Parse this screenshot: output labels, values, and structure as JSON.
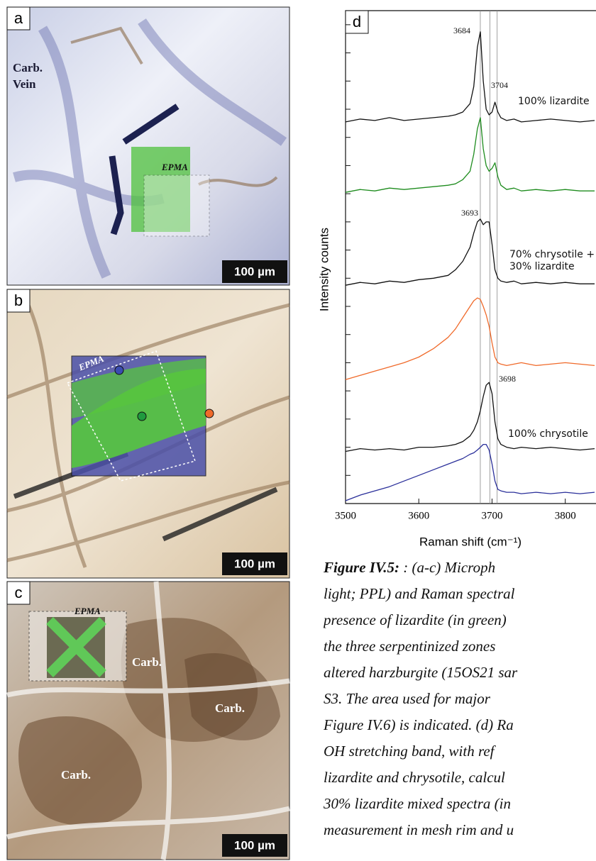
{
  "panels": [
    {
      "label": "a",
      "annotations": [
        "Carb.",
        "Vein"
      ],
      "epma": "EPMA",
      "scale_bar": "100 µm"
    },
    {
      "label": "b",
      "epma": "EPMA",
      "scale_bar": "100 µm"
    },
    {
      "label": "c",
      "epma": "EPMA",
      "annotations": [
        "Carb.",
        "Carb.",
        "Carb."
      ],
      "scale_bar": "100 µm"
    }
  ],
  "chart_data": {
    "type": "line",
    "panel_label": "d",
    "x_label": "Raman shift (cm⁻¹)",
    "y_label": "Intensity counts",
    "x": [
      3500,
      3520,
      3540,
      3560,
      3580,
      3600,
      3620,
      3640,
      3650,
      3660,
      3670,
      3675,
      3680,
      3684,
      3688,
      3692,
      3696,
      3700,
      3704,
      3708,
      3712,
      3720,
      3730,
      3740,
      3760,
      3780,
      3800,
      3820,
      3840
    ],
    "xlim": [
      3500,
      3840
    ],
    "xticks": [
      3500,
      3600,
      3700,
      3800
    ],
    "ylim": [
      0,
      17.5
    ],
    "yticks": [
      1,
      2,
      3,
      4,
      5,
      6,
      7,
      8,
      9,
      10,
      11,
      12,
      13,
      14,
      15,
      16,
      17
    ],
    "reference_lines": [
      3684,
      3697,
      3707
    ],
    "peak_labels": [
      "3684",
      "3704",
      "3693",
      "3698"
    ],
    "series": [
      {
        "name": "100% lizardite",
        "color": "#111111",
        "values": [
          13.55,
          13.65,
          13.6,
          13.7,
          13.6,
          13.65,
          13.7,
          13.75,
          13.8,
          13.9,
          14.2,
          14.8,
          16.2,
          16.75,
          15.0,
          14.0,
          13.8,
          13.9,
          14.25,
          13.9,
          13.7,
          13.6,
          13.65,
          13.55,
          13.6,
          13.65,
          13.6,
          13.55,
          13.6
        ]
      },
      {
        "color": "#1e8c1e",
        "values": [
          11.05,
          11.15,
          11.1,
          11.2,
          11.15,
          11.2,
          11.25,
          11.3,
          11.35,
          11.5,
          11.8,
          12.4,
          13.3,
          13.7,
          12.6,
          12.0,
          11.8,
          11.9,
          12.1,
          11.6,
          11.3,
          11.15,
          11.2,
          11.1,
          11.15,
          11.1,
          11.15,
          11.1,
          11.1
        ]
      },
      {
        "name": "70% chrysotile + 30% lizardite",
        "color": "#111111",
        "values": [
          7.75,
          7.85,
          7.8,
          7.9,
          7.85,
          7.95,
          8.0,
          8.1,
          8.3,
          8.6,
          9.1,
          9.6,
          10.0,
          10.1,
          9.9,
          10.0,
          10.0,
          9.2,
          8.3,
          8.0,
          7.9,
          7.85,
          7.9,
          7.8,
          7.85,
          7.8,
          7.85,
          7.8,
          7.8
        ]
      },
      {
        "color": "#f06a2a",
        "values": [
          4.4,
          4.55,
          4.7,
          4.85,
          5.0,
          5.2,
          5.5,
          5.9,
          6.2,
          6.6,
          7.0,
          7.2,
          7.3,
          7.25,
          7.0,
          6.7,
          6.3,
          5.7,
          5.2,
          5.0,
          4.95,
          4.9,
          4.95,
          5.0,
          4.9,
          4.95,
          5.0,
          4.95,
          4.9
        ]
      },
      {
        "name": "100% chrysotile",
        "color": "#111111",
        "values": [
          1.85,
          1.95,
          1.9,
          1.95,
          1.9,
          2.0,
          2.0,
          2.05,
          2.1,
          2.2,
          2.4,
          2.6,
          2.9,
          3.3,
          3.8,
          4.2,
          4.3,
          3.9,
          2.9,
          2.3,
          2.1,
          2.0,
          1.95,
          2.0,
          1.95,
          2.0,
          1.95,
          1.9,
          1.95
        ]
      },
      {
        "color": "#2a2f9a",
        "values": [
          0.1,
          0.3,
          0.45,
          0.6,
          0.8,
          1.0,
          1.2,
          1.4,
          1.5,
          1.6,
          1.75,
          1.8,
          1.9,
          2.0,
          2.1,
          2.1,
          1.9,
          1.4,
          0.8,
          0.5,
          0.45,
          0.4,
          0.4,
          0.35,
          0.4,
          0.35,
          0.4,
          0.35,
          0.4
        ]
      }
    ]
  },
  "caption": {
    "title": "Figure IV.5:",
    "lines": [
      ": (a-c) Microph",
      "light; PPL) and Raman spectral",
      "presence of lizardite (in green)",
      "the three serpentinized zones",
      "altered harzburgite (15OS21 sar",
      "S3. The area used for major",
      "Figure IV.6) is indicated. (d) Ra",
      "OH stretching band, with ref",
      "lizardite and chrysotile, calcul",
      "30% lizardite mixed spectra (in",
      "measurement in mesh rim and u"
    ]
  }
}
